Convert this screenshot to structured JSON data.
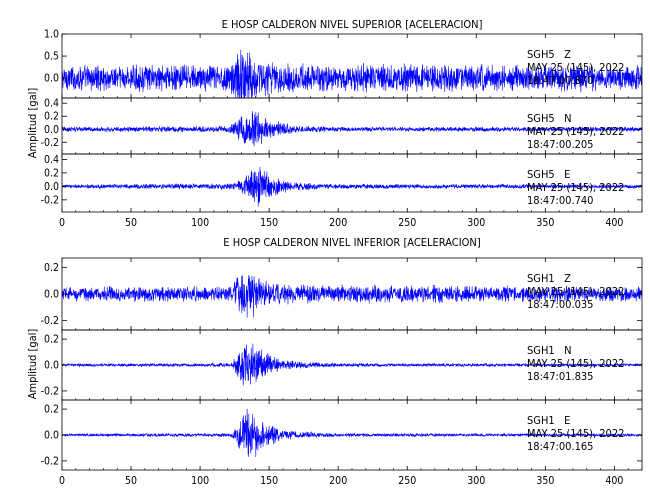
{
  "chart_data": [
    {
      "type": "line",
      "title": "E HOSP CALDERON NIVEL SUPERIOR [ACELERACION]",
      "xlabel": "",
      "ylabel": "Amplitud  [gal]",
      "xlim": [
        0,
        420
      ],
      "xticks": [
        0,
        50,
        100,
        150,
        200,
        250,
        300,
        350,
        400
      ],
      "grid": false,
      "series": [
        {
          "name": "SGH5   Z",
          "date_label": "MAY 25 (145), 2022",
          "time_label": "18:47:00.870",
          "ylim": [
            -0.45,
            1.0
          ],
          "yticks": [
            -0.5,
            0.0,
            0.5,
            1.0
          ],
          "color": "#0000ff",
          "envelope": [
            {
              "t": 0,
              "amp": 0.32
            },
            {
              "t": 120,
              "amp": 0.34
            },
            {
              "t": 125,
              "amp": 0.55
            },
            {
              "t": 130,
              "amp": 0.9
            },
            {
              "t": 140,
              "amp": 0.5
            },
            {
              "t": 160,
              "amp": 0.36
            },
            {
              "t": 420,
              "amp": 0.32
            }
          ]
        },
        {
          "name": "SGH5   N",
          "date_label": "MAY 25 (145), 2022",
          "time_label": "18:47:00.205",
          "ylim": [
            -0.38,
            0.48
          ],
          "yticks": [
            -0.4,
            -0.2,
            0.0,
            0.2,
            0.4
          ],
          "color": "#0000ff",
          "envelope": [
            {
              "t": 0,
              "amp": 0.04
            },
            {
              "t": 120,
              "amp": 0.05
            },
            {
              "t": 128,
              "amp": 0.2
            },
            {
              "t": 137,
              "amp": 0.38
            },
            {
              "t": 150,
              "amp": 0.15
            },
            {
              "t": 160,
              "amp": 0.12
            },
            {
              "t": 172,
              "amp": 0.06
            },
            {
              "t": 200,
              "amp": 0.04
            },
            {
              "t": 420,
              "amp": 0.04
            }
          ]
        },
        {
          "name": "SGH5   E",
          "date_label": "MAY 25 (145), 2022",
          "time_label": "18:47:00.740",
          "ylim": [
            -0.38,
            0.48
          ],
          "yticks": [
            -0.4,
            -0.2,
            0.0,
            0.2,
            0.4
          ],
          "color": "#0000ff",
          "envelope": [
            {
              "t": 0,
              "amp": 0.03
            },
            {
              "t": 125,
              "amp": 0.05
            },
            {
              "t": 133,
              "amp": 0.18
            },
            {
              "t": 142,
              "amp": 0.38
            },
            {
              "t": 152,
              "amp": 0.16
            },
            {
              "t": 165,
              "amp": 0.08
            },
            {
              "t": 190,
              "amp": 0.04
            },
            {
              "t": 420,
              "amp": 0.03
            }
          ]
        }
      ]
    },
    {
      "type": "line",
      "title": "E HOSP CALDERON NIVEL INFERIOR [ACELERACION]",
      "xlabel": "",
      "ylabel": "Amplitud  [gal]",
      "xlim": [
        0,
        420
      ],
      "xticks": [
        0,
        50,
        100,
        150,
        200,
        250,
        300,
        350,
        400
      ],
      "grid": false,
      "series": [
        {
          "name": "SGH1   Z",
          "date_label": "MAY 25 (145), 2022",
          "time_label": "18:47:00.035",
          "ylim": [
            -0.27,
            0.27
          ],
          "yticks": [
            -0.2,
            0.0,
            0.2
          ],
          "color": "#0000ff",
          "envelope": [
            {
              "t": 0,
              "amp": 0.06
            },
            {
              "t": 122,
              "amp": 0.065
            },
            {
              "t": 128,
              "amp": 0.15
            },
            {
              "t": 133,
              "amp": 0.24
            },
            {
              "t": 145,
              "amp": 0.12
            },
            {
              "t": 160,
              "amp": 0.08
            },
            {
              "t": 420,
              "amp": 0.06
            }
          ]
        },
        {
          "name": "SGH1   N",
          "date_label": "MAY 25 (145), 2022",
          "time_label": "18:47:01.835",
          "ylim": [
            -0.27,
            0.27
          ],
          "yticks": [
            -0.2,
            0.0,
            0.2
          ],
          "color": "#0000ff",
          "envelope": [
            {
              "t": 0,
              "amp": 0.012
            },
            {
              "t": 123,
              "amp": 0.015
            },
            {
              "t": 128,
              "amp": 0.12
            },
            {
              "t": 134,
              "amp": 0.25
            },
            {
              "t": 145,
              "amp": 0.12
            },
            {
              "t": 160,
              "amp": 0.04
            },
            {
              "t": 200,
              "amp": 0.015
            },
            {
              "t": 420,
              "amp": 0.012
            }
          ]
        },
        {
          "name": "SGH1   E",
          "date_label": "MAY 25 (145), 2022",
          "time_label": "18:47:00.165",
          "ylim": [
            -0.27,
            0.27
          ],
          "yticks": [
            -0.2,
            0.0,
            0.2
          ],
          "color": "#0000ff",
          "envelope": [
            {
              "t": 0,
              "amp": 0.012
            },
            {
              "t": 123,
              "amp": 0.015
            },
            {
              "t": 128,
              "amp": 0.12
            },
            {
              "t": 134,
              "amp": 0.25
            },
            {
              "t": 145,
              "amp": 0.12
            },
            {
              "t": 160,
              "amp": 0.04
            },
            {
              "t": 200,
              "amp": 0.015
            },
            {
              "t": 420,
              "amp": 0.012
            }
          ]
        }
      ]
    }
  ]
}
